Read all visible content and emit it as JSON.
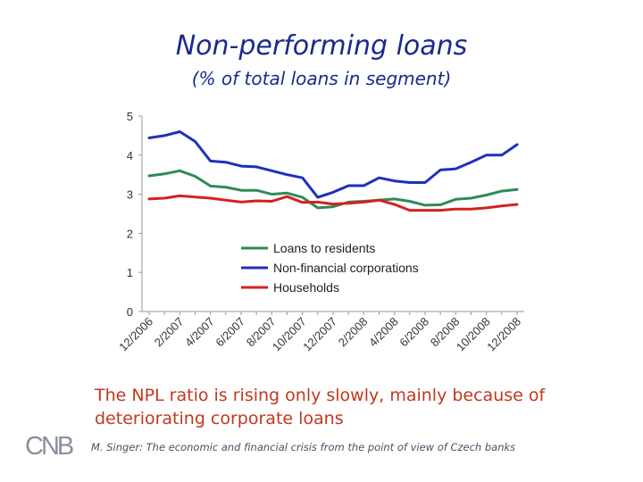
{
  "page": {
    "note": "The NPL ratio is rising only slowly, mainly because of deteriorating corporate loans",
    "footer": "M. Singer: The economic and financial crisis from the point of view of Czech banks",
    "logo_text": "CNB"
  },
  "chart_data": {
    "type": "line",
    "title": "Non-performing loans",
    "subtitle": "(% of total loans in segment)",
    "x": [
      "12/2006",
      "1/2007",
      "2/2007",
      "3/2007",
      "4/2007",
      "5/2007",
      "6/2007",
      "7/2007",
      "8/2007",
      "9/2007",
      "10/2007",
      "11/2007",
      "12/2007",
      "1/2008",
      "2/2008",
      "3/2008",
      "4/2008",
      "5/2008",
      "6/2008",
      "7/2008",
      "8/2008",
      "9/2008",
      "10/2008",
      "11/2008",
      "12/2008"
    ],
    "x_tick_labels": [
      "12/2006",
      "2/2007",
      "4/2007",
      "6/2007",
      "8/2007",
      "10/2007",
      "12/2007",
      "2/2008",
      "4/2008",
      "6/2008",
      "8/2008",
      "10/2008",
      "12/2008"
    ],
    "ylim": [
      0,
      5
    ],
    "y_ticks": [
      0,
      1,
      2,
      3,
      4,
      5
    ],
    "grid": false,
    "legend_placement": "lower-center",
    "series": [
      {
        "name": "Loans to residents",
        "color": "#2e8b57",
        "values": [
          3.47,
          3.52,
          3.6,
          3.46,
          3.21,
          3.18,
          3.1,
          3.1,
          3.0,
          3.03,
          2.92,
          2.65,
          2.68,
          2.8,
          2.82,
          2.85,
          2.88,
          2.82,
          2.72,
          2.73,
          2.87,
          2.9,
          2.98,
          3.08,
          3.12
        ]
      },
      {
        "name": "Non-financial corporations",
        "color": "#1f2fbf",
        "values": [
          4.44,
          4.5,
          4.6,
          4.35,
          3.85,
          3.82,
          3.72,
          3.7,
          3.6,
          3.5,
          3.42,
          2.92,
          3.05,
          3.22,
          3.22,
          3.42,
          3.34,
          3.3,
          3.3,
          3.62,
          3.65,
          3.82,
          4.0,
          4.0,
          4.27
        ]
      },
      {
        "name": "Households",
        "color": "#d62020",
        "values": [
          2.88,
          2.9,
          2.96,
          2.93,
          2.9,
          2.85,
          2.8,
          2.83,
          2.82,
          2.94,
          2.79,
          2.8,
          2.75,
          2.77,
          2.8,
          2.85,
          2.74,
          2.59,
          2.59,
          2.59,
          2.62,
          2.62,
          2.65,
          2.7,
          2.74
        ]
      }
    ]
  }
}
